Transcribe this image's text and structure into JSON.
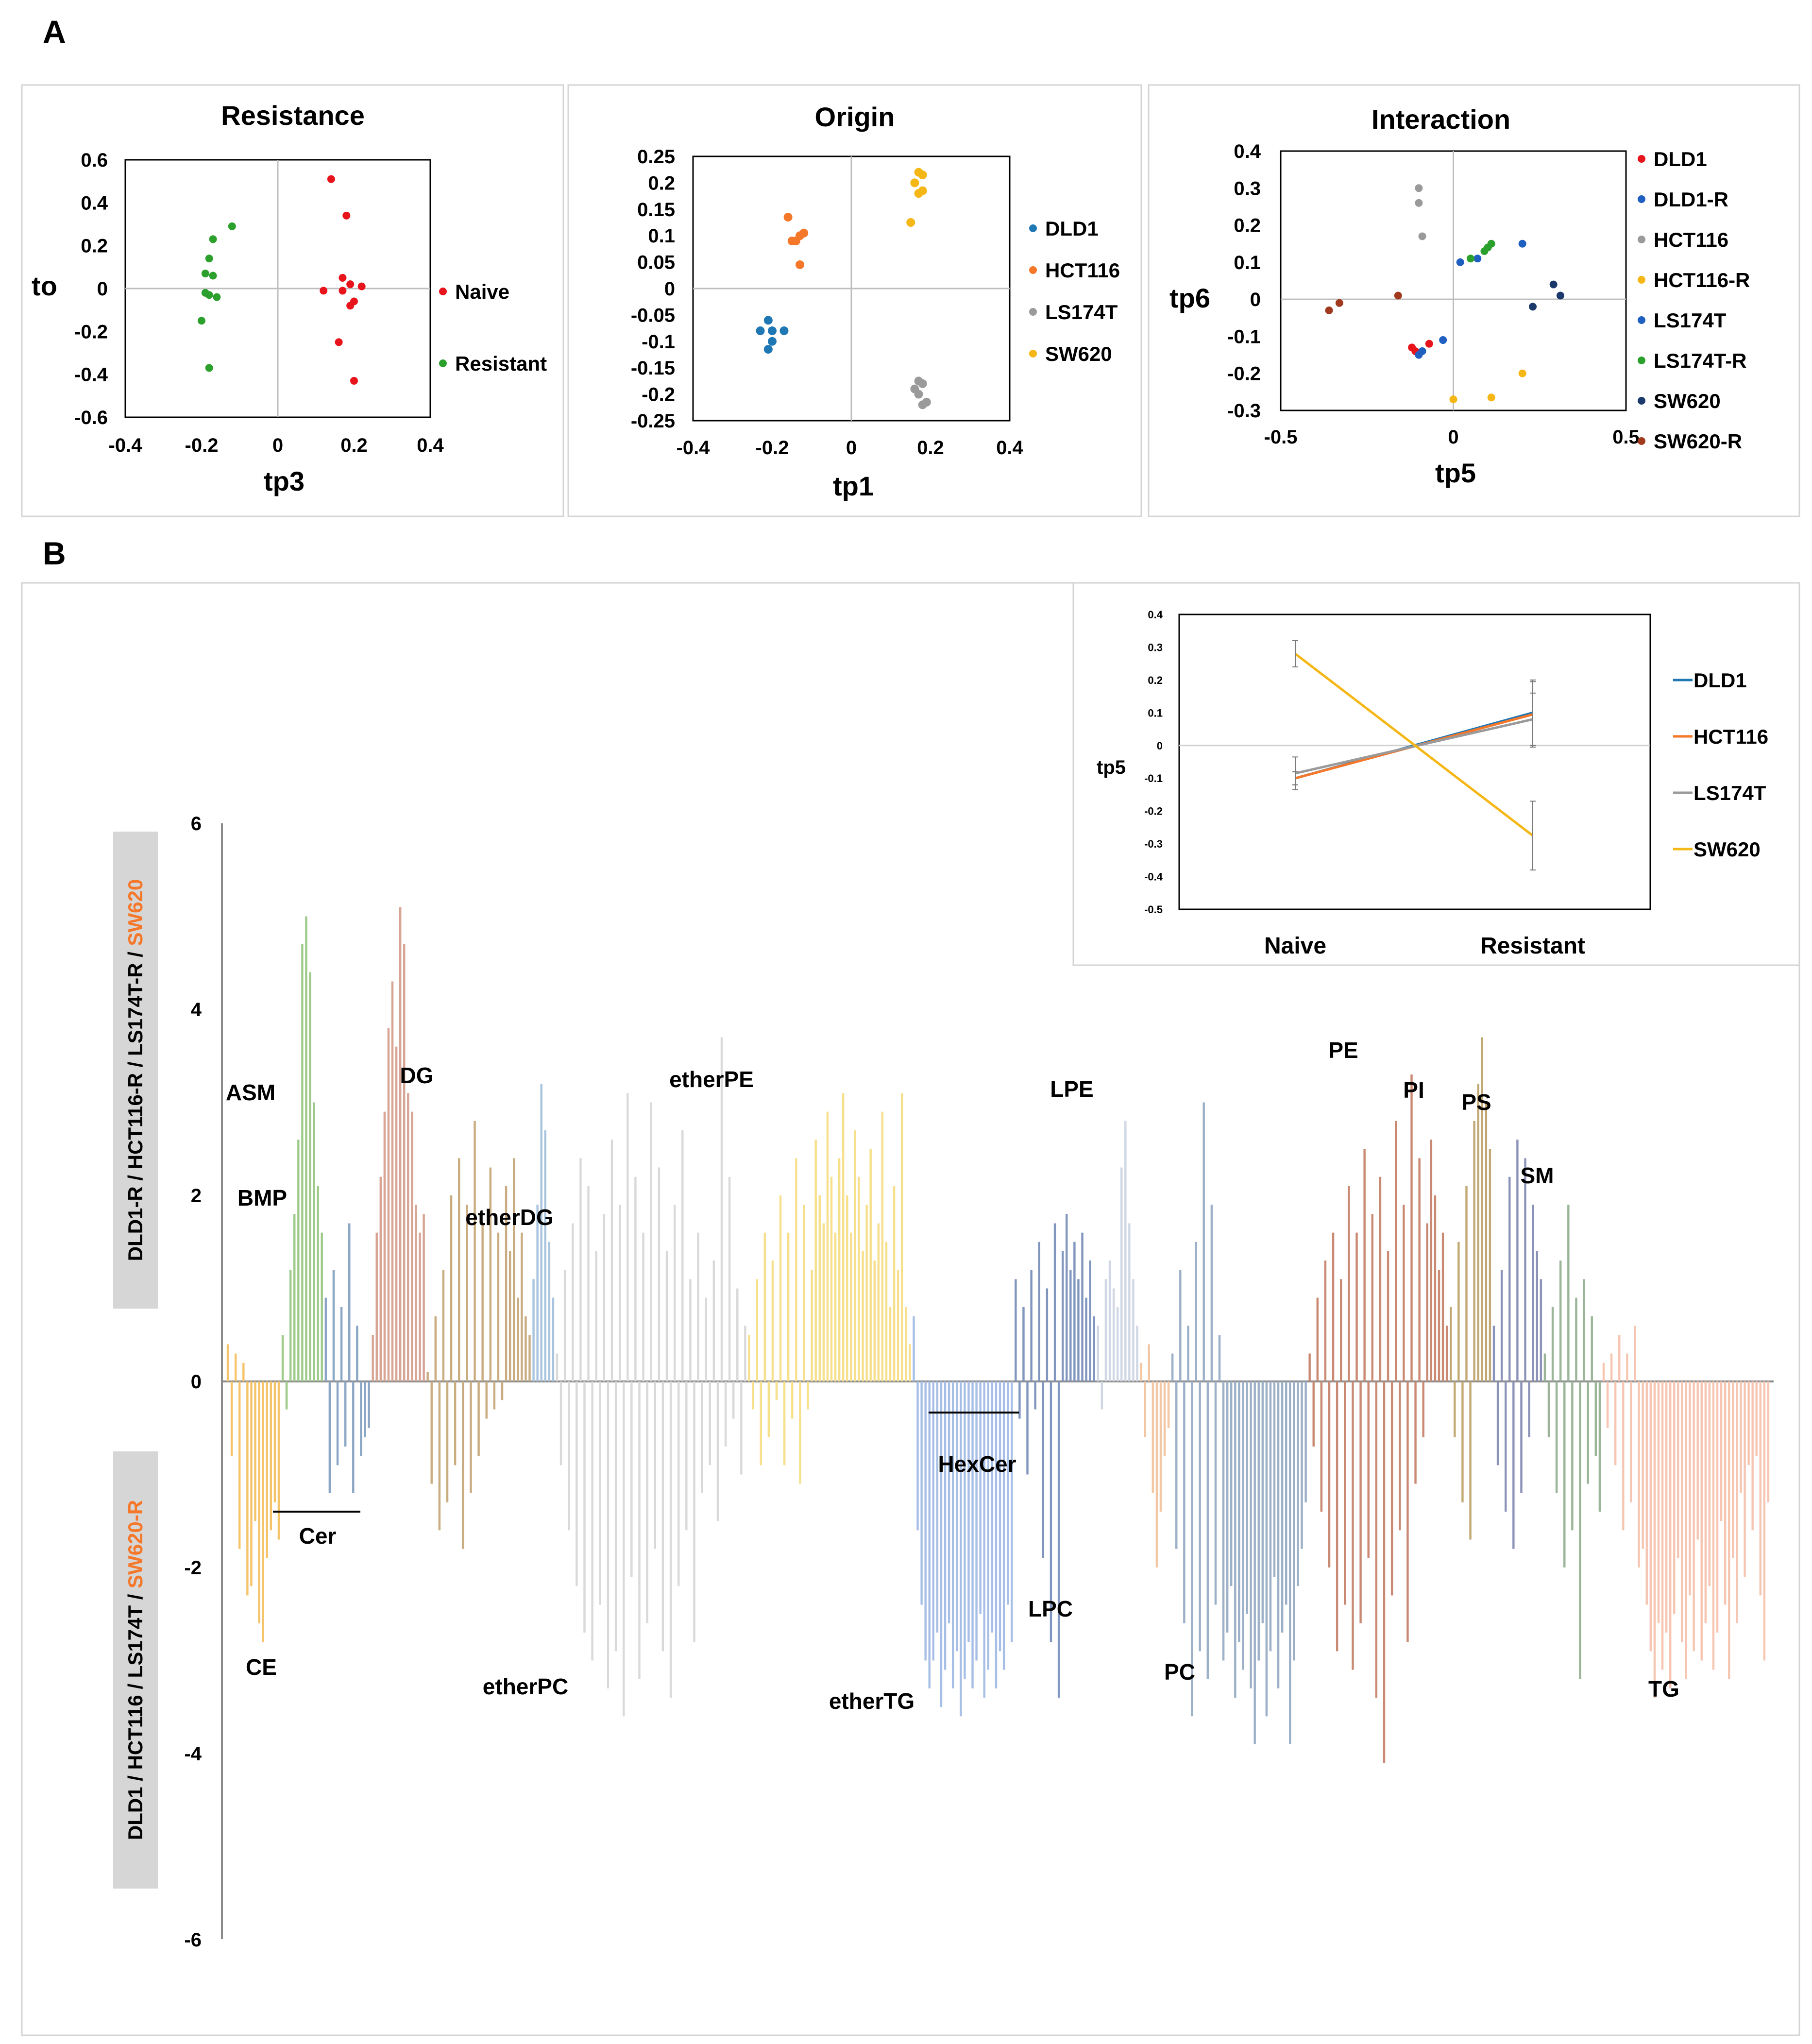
{
  "panels": {
    "a": "A",
    "b": "B"
  },
  "colors": {
    "red": "#e8141c",
    "green": "#2ca02c",
    "blue": "#1f77b4",
    "orange": "#f4772a",
    "gray": "#9a9a9a",
    "yellow": "#f5b715",
    "navy": "#1a4f8a",
    "brown": "#a0391e",
    "bright_blue": "#1f5fbf",
    "dark_navy": "#1b3a6b"
  },
  "chart_data": [
    {
      "id": "resistance",
      "type": "scatter",
      "title": "Resistance",
      "xlabel": "tp3",
      "ylabel": "to",
      "xlim": [
        -0.4,
        0.4
      ],
      "ylim": [
        -0.6,
        0.6
      ],
      "xticks": [
        "-0.4",
        "-0.2",
        "0",
        "0.2",
        "0.4"
      ],
      "yticks": [
        "-0.6",
        "-0.4",
        "-0.2",
        "0",
        "0.2",
        "0.4",
        "0.6"
      ],
      "series": [
        {
          "name": "Naive",
          "color": "#e8141c",
          "x": [
            0.14,
            0.18,
            0.17,
            0.22,
            0.12,
            0.17,
            0.19,
            0.2,
            0.19,
            0.16,
            0.2
          ],
          "y": [
            0.51,
            0.34,
            0.05,
            0.01,
            -0.01,
            -0.01,
            0.02,
            -0.06,
            -0.08,
            -0.25,
            -0.43
          ]
        },
        {
          "name": "Resistant",
          "color": "#2ca02c",
          "x": [
            -0.12,
            -0.17,
            -0.18,
            -0.19,
            -0.17,
            -0.18,
            -0.16,
            -0.19,
            -0.2,
            -0.18
          ],
          "y": [
            0.29,
            0.23,
            0.14,
            0.07,
            0.06,
            -0.03,
            -0.04,
            -0.02,
            -0.15,
            -0.37
          ]
        }
      ]
    },
    {
      "id": "origin",
      "type": "scatter",
      "title": "Origin",
      "xlabel": "tp1",
      "xlim": [
        -0.4,
        0.4
      ],
      "ylim": [
        -0.25,
        0.25
      ],
      "xticks": [
        "-0.4",
        "-0.2",
        "0",
        "0.2",
        "0.4"
      ],
      "yticks": [
        "0.25",
        "0.2",
        "0.15",
        "0.1",
        "0.05",
        "0",
        "-0.05",
        "-0.1",
        "-0.15",
        "-0.2",
        "-0.25"
      ],
      "series": [
        {
          "name": "DLD1",
          "color": "#1f77b4",
          "x": [
            -0.21,
            -0.23,
            -0.2,
            -0.17,
            -0.2,
            -0.21
          ],
          "y": [
            -0.06,
            -0.08,
            -0.08,
            -0.08,
            -0.1,
            -0.115
          ]
        },
        {
          "name": "HCT116",
          "color": "#f4772a",
          "x": [
            -0.16,
            -0.12,
            -0.13,
            -0.15,
            -0.14,
            -0.13
          ],
          "y": [
            0.135,
            0.105,
            0.1,
            0.09,
            0.09,
            0.045
          ]
        },
        {
          "name": "LS174T",
          "color": "#9a9a9a",
          "x": [
            0.17,
            0.18,
            0.16,
            0.17,
            0.18,
            0.19
          ],
          "y": [
            -0.175,
            -0.18,
            -0.19,
            -0.2,
            -0.22,
            -0.215
          ]
        },
        {
          "name": "SW620",
          "color": "#f5b715",
          "x": [
            0.17,
            0.18,
            0.16,
            0.17,
            0.18,
            0.15
          ],
          "y": [
            0.22,
            0.215,
            0.2,
            0.18,
            0.185,
            0.125
          ]
        }
      ]
    },
    {
      "id": "interaction",
      "type": "scatter",
      "title": "Interaction",
      "xlabel": "tp5",
      "ylabel": "tp6",
      "xlim": [
        -0.5,
        0.5
      ],
      "ylim": [
        -0.3,
        0.4
      ],
      "xticks": [
        "-0.5",
        "0",
        "0.5"
      ],
      "yticks": [
        "0.4",
        "0.3",
        "0.2",
        "0.1",
        "0",
        "-0.1",
        "-0.2",
        "-0.3"
      ],
      "series": [
        {
          "name": "DLD1",
          "color": "#e8141c",
          "x": [
            -0.07,
            -0.12,
            -0.11
          ],
          "y": [
            -0.12,
            -0.13,
            -0.14
          ]
        },
        {
          "name": "DLD1-R",
          "color": "#1f5fbf",
          "x": [
            -0.03,
            -0.1,
            -0.09
          ],
          "y": [
            -0.11,
            -0.15,
            -0.14
          ]
        },
        {
          "name": "HCT116",
          "color": "#9a9a9a",
          "x": [
            -0.1,
            -0.1,
            -0.09
          ],
          "y": [
            0.3,
            0.26,
            0.17
          ]
        },
        {
          "name": "HCT116-R",
          "color": "#f5b715",
          "x": [
            0.2,
            0.11,
            0.0
          ],
          "y": [
            -0.2,
            -0.265,
            -0.27
          ]
        },
        {
          "name": "LS174T",
          "color": "#1f5fbf",
          "x": [
            0.02,
            0.07,
            0.2
          ],
          "y": [
            0.1,
            0.11,
            0.15
          ]
        },
        {
          "name": "LS174T-R",
          "color": "#2ca02c",
          "x": [
            0.05,
            0.1,
            0.11,
            0.09
          ],
          "y": [
            0.11,
            0.14,
            0.15,
            0.13
          ]
        },
        {
          "name": "SW620",
          "color": "#1b3a6b",
          "x": [
            0.29,
            0.23,
            0.31
          ],
          "y": [
            0.04,
            -0.02,
            0.01
          ]
        },
        {
          "name": "SW620-R",
          "color": "#a0391e",
          "x": [
            -0.36,
            -0.33,
            -0.16
          ],
          "y": [
            -0.03,
            -0.01,
            0.01
          ]
        }
      ]
    },
    {
      "id": "tp5_lines",
      "type": "line",
      "ylabel": "tp5",
      "categories": [
        "Naive",
        "Resistant"
      ],
      "ylim": [
        -0.5,
        0.4
      ],
      "yticks": [
        "0.4",
        "0.3",
        "0.2",
        "0.1",
        "0",
        "-0.1",
        "-0.2",
        "-0.3",
        "-0.4",
        "-0.5"
      ],
      "series": [
        {
          "name": "DLD1",
          "color": "#1f77b4",
          "values": [
            -0.1,
            0.1
          ],
          "err": [
            0.02,
            0.1
          ]
        },
        {
          "name": "HCT116",
          "color": "#f4772a",
          "values": [
            -0.1,
            0.095
          ],
          "err": [
            0.02,
            0.1
          ]
        },
        {
          "name": "LS174T",
          "color": "#9a9a9a",
          "values": [
            -0.085,
            0.08
          ],
          "err": [
            0.05,
            0.08
          ]
        },
        {
          "name": "SW620",
          "color": "#f5b715",
          "values": [
            0.28,
            -0.275
          ],
          "err": [
            0.04,
            0.105
          ]
        }
      ]
    },
    {
      "id": "lipid_bars",
      "type": "bar",
      "ylim": [
        -6,
        6
      ],
      "yticks": [
        "6",
        "4",
        "2",
        "0",
        "-2",
        "-4",
        "-6"
      ],
      "ylabel_top": [
        "DLD1-R / HCT116-R / LS174T-R / ",
        "SW620"
      ],
      "ylabel_bottom": [
        "DLD1 / HCT116 / LS174T / ",
        "SW620-R"
      ],
      "classes": [
        {
          "name": "CE",
          "color": "#f5c46a",
          "up": [
            0.4,
            0.3,
            0.2
          ],
          "down": [
            -0.8,
            -1.8,
            -2.3,
            -2.2,
            -1.5,
            -2.6,
            -2.8,
            -1.9,
            -1.6,
            -1.3,
            -1.7
          ]
        },
        {
          "name": "ASM",
          "color": "#9ecb8a",
          "up": [
            0.5,
            1.2,
            1.8,
            2.6,
            4.7,
            5.0,
            4.4,
            3.0,
            2.1,
            1.6
          ],
          "down": [
            -0.3
          ]
        },
        {
          "name": "Cer",
          "color": "#8aa6c4",
          "up": [
            0.9,
            1.2,
            0.8,
            1.7,
            0.6
          ],
          "down": [
            -1.2,
            -0.9,
            -0.7,
            -1.2,
            -0.8,
            -0.6,
            -0.5
          ]
        },
        {
          "name": "BMP",
          "color": "#d8a493",
          "up": [
            0.5,
            1.6,
            2.2,
            2.9,
            3.8,
            4.3,
            3.6,
            5.1,
            4.7,
            3.1,
            2.9,
            1.9,
            1.6,
            1.8
          ],
          "down": []
        },
        {
          "name": "DG",
          "color": "#c9ac80",
          "up": [
            0.1,
            0.7,
            1.2,
            2.0,
            2.4,
            1.9,
            2.8,
            1.7,
            2.3,
            1.6,
            2.1,
            1.4,
            2.4,
            0.9,
            1.6,
            0.7,
            0.5
          ],
          "down": [
            -1.1,
            -1.6,
            -1.3,
            -0.9,
            -1.8,
            -1.2,
            -0.8,
            -0.4,
            -0.3,
            -0.2
          ]
        },
        {
          "name": "etherDG",
          "color": "#a8c4de",
          "up": [
            1.1,
            1.9,
            3.2,
            2.7,
            1.5,
            0.9
          ],
          "down": []
        },
        {
          "name": "etherPC",
          "color": "#d9d9d9",
          "up": [
            0.3,
            1.2,
            1.7,
            2.4,
            2.1,
            1.4,
            1.8,
            2.6,
            1.9,
            3.1,
            2.2,
            1.6,
            3.0,
            2.3,
            1.4,
            1.9,
            2.7,
            1.1,
            1.6,
            0.9,
            1.3,
            3.7,
            2.2,
            1.0,
            0.6
          ],
          "down": [
            -0.9,
            -1.6,
            -2.2,
            -2.7,
            -3.0,
            -2.4,
            -3.3,
            -2.9,
            -3.6,
            -2.1,
            -3.2,
            -2.6,
            -1.8,
            -2.9,
            -3.4,
            -2.2,
            -1.6,
            -2.8,
            -1.2,
            -0.9,
            -1.5,
            -0.7,
            -0.4,
            -1.0
          ]
        },
        {
          "name": "etherPE",
          "color": "#f7e08c",
          "up": [
            0.5,
            1.1,
            1.6,
            1.3,
            2.0,
            1.6,
            2.4,
            1.9,
            1.2,
            2.6,
            2.0,
            1.7,
            2.9,
            2.2,
            1.6,
            2.4,
            3.1,
            2.0,
            1.6,
            2.7,
            2.2,
            1.4,
            1.9,
            2.5,
            1.3,
            1.7,
            2.9,
            1.5,
            0.8,
            2.1,
            1.2,
            3.1,
            0.8,
            0.4
          ],
          "down": [
            -0.3,
            -0.9,
            -0.6,
            -0.2,
            -0.9,
            -0.4,
            -1.1,
            -0.3
          ]
        },
        {
          "name": "etherTG",
          "color": "#a7bfe6",
          "up": [
            0.7
          ],
          "down": [
            -1.6,
            -2.4,
            -3.0,
            -3.3,
            -3.0,
            -2.7,
            -3.5,
            -3.1,
            -2.6,
            -3.3,
            -2.9,
            -3.6,
            -3.2,
            -2.8,
            -3.3,
            -3.0,
            -2.5,
            -3.4,
            -3.1,
            -2.7,
            -3.3,
            -2.9,
            -3.1,
            -2.4,
            -2.8
          ]
        },
        {
          "name": "HexCer",
          "color": "#8096bf",
          "up": [
            1.1,
            0.8,
            1.2,
            1.5,
            1.0,
            1.7,
            1.4,
            1.8,
            1.2,
            1.5,
            1.1,
            1.6,
            0.9,
            1.3,
            0.7
          ],
          "down": [
            -0.4,
            -1.0,
            -0.3,
            -1.9,
            -2.8,
            -3.4
          ]
        },
        {
          "name": "LPE",
          "color": "#d0d7e4",
          "up": [
            0.6,
            1.1,
            1.3,
            1.0,
            0.8,
            2.3,
            2.8,
            1.7,
            1.1,
            0.6
          ],
          "down": [
            -0.3
          ]
        },
        {
          "name": "LPC",
          "color": "#f3c7a4",
          "up": [
            0.2,
            0.4
          ],
          "down": [
            -0.6,
            -1.2,
            -2.0,
            -1.4,
            -0.8,
            -0.5
          ]
        },
        {
          "name": "PC",
          "color": "#9cb0c8",
          "up": [
            0.3,
            1.2,
            0.6,
            1.5,
            3.0,
            1.9,
            0.5
          ],
          "down": [
            -1.8,
            -2.6,
            -3.6,
            -2.9,
            -3.2,
            -2.4,
            -3.0,
            -2.7,
            -2.2,
            -3.4,
            -2.8,
            -3.1,
            -2.5,
            -3.3,
            -3.9,
            -3.0,
            -2.6,
            -3.6,
            -2.9,
            -2.1,
            -3.3,
            -2.7,
            -2.4,
            -3.9,
            -3.0,
            -2.2,
            -1.8,
            -1.3
          ]
        },
        {
          "name": "PE",
          "color": "#c98972",
          "up": [
            0.3,
            0.9,
            1.3,
            1.6,
            1.1,
            2.1,
            1.6,
            2.5,
            1.8,
            2.2,
            1.4,
            2.8,
            1.9,
            3.3,
            2.4,
            1.7,
            2.6,
            2.0,
            1.2,
            1.6,
            0.6
          ],
          "down": [
            -0.7,
            -1.4,
            -2.0,
            -2.9,
            -2.4,
            -3.1,
            -2.6,
            -1.9,
            -3.4,
            -4.1,
            -2.3,
            -1.6,
            -2.8,
            -1.1,
            -0.6
          ]
        },
        {
          "name": "PI",
          "color": "#c2a873",
          "up": [
            0.8,
            1.5,
            2.1,
            2.8,
            3.2,
            3.7,
            3.0,
            2.5
          ],
          "down": [
            -0.6,
            -1.3,
            -1.7
          ]
        },
        {
          "name": "PS",
          "color": "#8c93b8",
          "up": [
            0.6,
            1.2,
            2.2,
            2.6,
            2.4,
            1.9,
            1.4,
            1.1
          ],
          "down": [
            -0.9,
            -1.4,
            -1.8,
            -1.2,
            -0.6
          ]
        },
        {
          "name": "SM",
          "color": "#9ab597",
          "up": [
            0.3,
            0.8,
            1.3,
            1.9,
            0.9,
            1.1,
            0.7
          ],
          "down": [
            -0.6,
            -1.2,
            -2.0,
            -1.6,
            -3.2,
            -1.1,
            -0.8,
            -1.4
          ]
        },
        {
          "name": "TG",
          "color": "#f6c6b2",
          "up": [
            0.2,
            0.3,
            0.5,
            0.3,
            0.6
          ],
          "down": [
            -0.5,
            -0.9,
            -1.6,
            -1.3,
            -2.0,
            -1.8,
            -2.4,
            -2.9,
            -3.4,
            -2.6,
            -3.1,
            -2.7,
            -3.3,
            -2.5,
            -1.9,
            -2.8,
            -3.2,
            -2.3,
            -2.9,
            -1.7,
            -3.0,
            -2.6,
            -2.2,
            -3.1,
            -2.7,
            -1.5,
            -2.4,
            -3.2,
            -1.9,
            -2.6,
            -1.2,
            -2.1,
            -0.9,
            -1.6,
            -0.8,
            -2.3,
            -3.0,
            -1.3
          ]
        }
      ],
      "brackets": [
        "Cer",
        "HexCer"
      ]
    }
  ]
}
